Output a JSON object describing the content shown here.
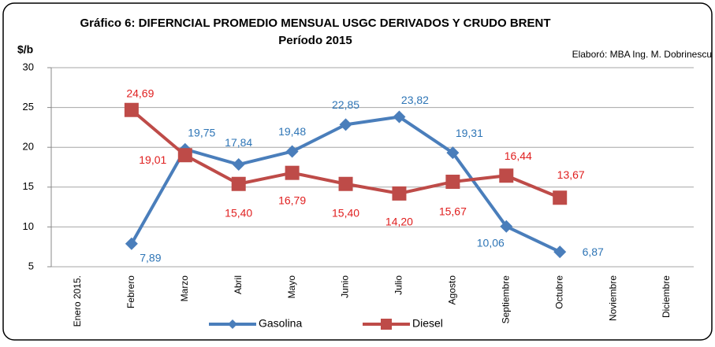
{
  "chart_data": {
    "type": "line",
    "title": "Gráfico 6: DIFERNCIAL PROMEDIO MENSUAL USGC DERIVADOS Y CRUDO BRENT",
    "subtitle": "Período 2015",
    "y_axis_label": "$/b",
    "annotation": "Elaboró: MBA Ing. M. Dobrinescu",
    "categories": [
      "Enero 2015.",
      "Febrero",
      "Marzo",
      "Abril",
      "Mayo",
      "Junio",
      "Julio",
      "Agosto",
      "Septiembre",
      "Octubre",
      "Noviembre",
      "Diciembre"
    ],
    "series": [
      {
        "name": "Gasolina",
        "color": "#4a7ebb",
        "label_color": "#2e75b6",
        "marker": "diamond",
        "values": [
          null,
          7.89,
          19.75,
          17.84,
          19.48,
          22.85,
          23.82,
          19.31,
          10.06,
          6.87,
          null,
          null
        ],
        "value_labels": [
          null,
          "7,89",
          "19,75",
          "17,84",
          "19,48",
          "22,85",
          "23,82",
          "19,31",
          "10,06",
          "6,87",
          null,
          null
        ]
      },
      {
        "name": "Diesel",
        "color": "#be4b48",
        "label_color": "#e02020",
        "marker": "square",
        "values": [
          null,
          24.69,
          19.01,
          15.4,
          16.79,
          15.4,
          14.2,
          15.67,
          16.44,
          13.67,
          null,
          null
        ],
        "value_labels": [
          null,
          "24,69",
          "19,01",
          "15,40",
          "16,79",
          "15,40",
          "14,20",
          "15,67",
          "16,44",
          "13,67",
          null,
          null
        ]
      }
    ],
    "ylim": [
      5,
      30
    ],
    "yticks": [
      5,
      10,
      15,
      20,
      25,
      30
    ],
    "grid": true,
    "legend": "bottom"
  }
}
